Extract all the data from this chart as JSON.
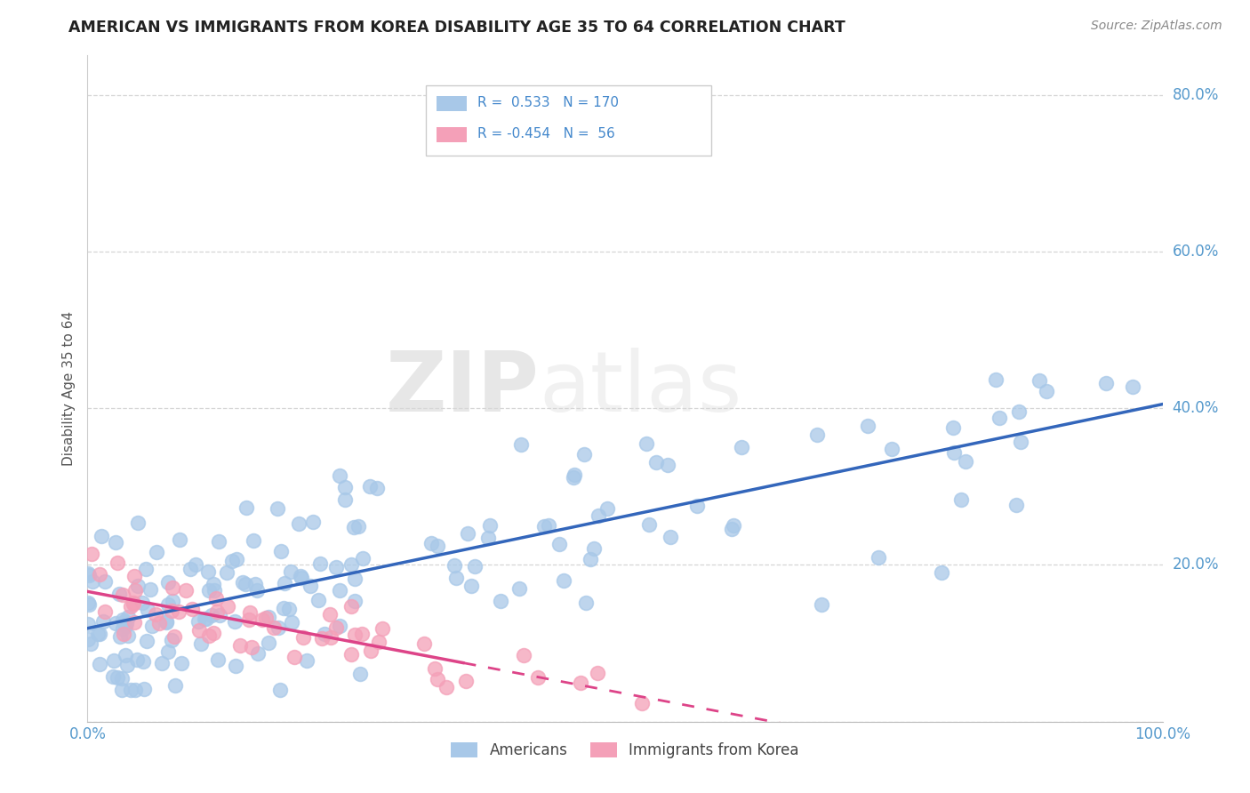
{
  "title": "AMERICAN VS IMMIGRANTS FROM KOREA DISABILITY AGE 35 TO 64 CORRELATION CHART",
  "source": "Source: ZipAtlas.com",
  "ylabel": "Disability Age 35 to 64",
  "xlim": [
    0.0,
    1.0
  ],
  "ylim": [
    0.0,
    0.85
  ],
  "americans_R": "0.533",
  "americans_N": "170",
  "korea_R": "-0.454",
  "korea_N": "56",
  "blue_color": "#a8c8e8",
  "pink_color": "#f4a0b8",
  "blue_line_color": "#3366bb",
  "pink_line_color": "#dd4488",
  "watermark_zip": "ZIP",
  "watermark_atlas": "atlas",
  "background_color": "#ffffff",
  "grid_color": "#cccccc"
}
